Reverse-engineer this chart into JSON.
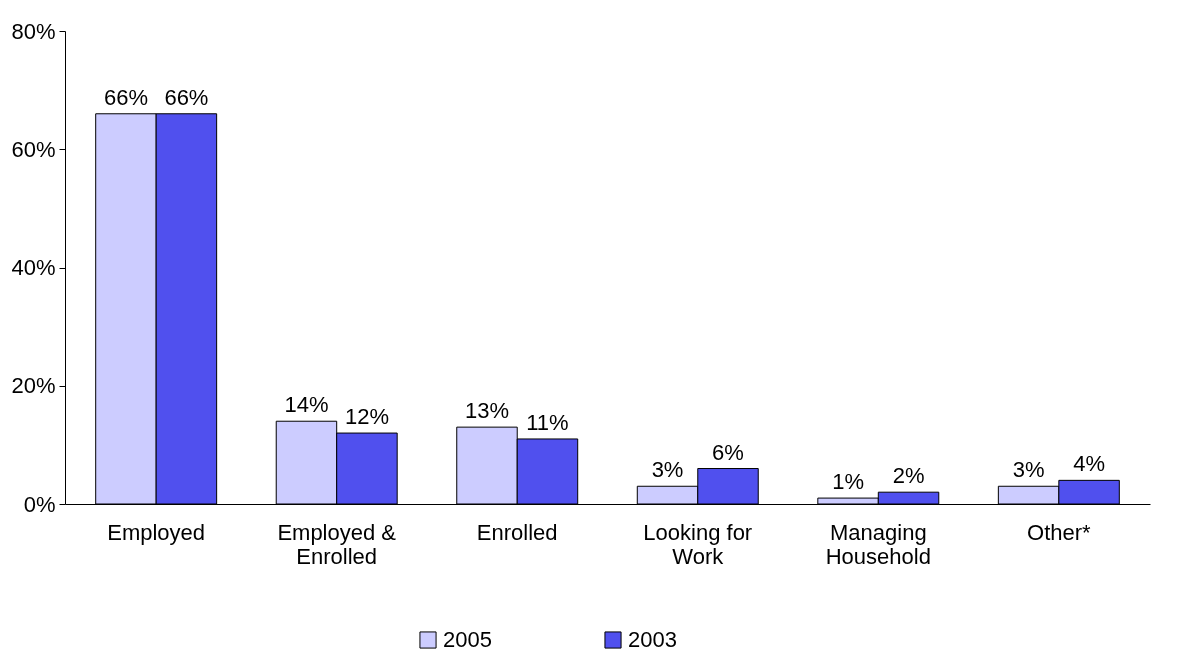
{
  "chart_data": {
    "type": "bar",
    "categories": [
      "Employed",
      "Employed & Enrolled",
      "Enrolled",
      "Looking for Work",
      "Managing Household",
      "Other*"
    ],
    "series": [
      {
        "name": "2005",
        "color": "#ccccff",
        "values": [
          66,
          14,
          13,
          3,
          1,
          3
        ],
        "value_labels": [
          "66%",
          "14%",
          "13%",
          "3%",
          "1%",
          "3%"
        ]
      },
      {
        "name": "2003",
        "color": "#5050ee",
        "values": [
          66,
          12,
          11,
          6,
          2,
          4
        ],
        "value_labels": [
          "66%",
          "12%",
          "11%",
          "6%",
          "2%",
          "4%"
        ]
      }
    ],
    "ylim": [
      0,
      80
    ],
    "yticks": [
      {
        "value": 0,
        "label": "0%"
      },
      {
        "value": 20,
        "label": "20%"
      },
      {
        "value": 40,
        "label": "40%"
      },
      {
        "value": 60,
        "label": "60%"
      },
      {
        "value": 80,
        "label": "80%"
      }
    ],
    "grid": false,
    "legend": "bottom"
  }
}
